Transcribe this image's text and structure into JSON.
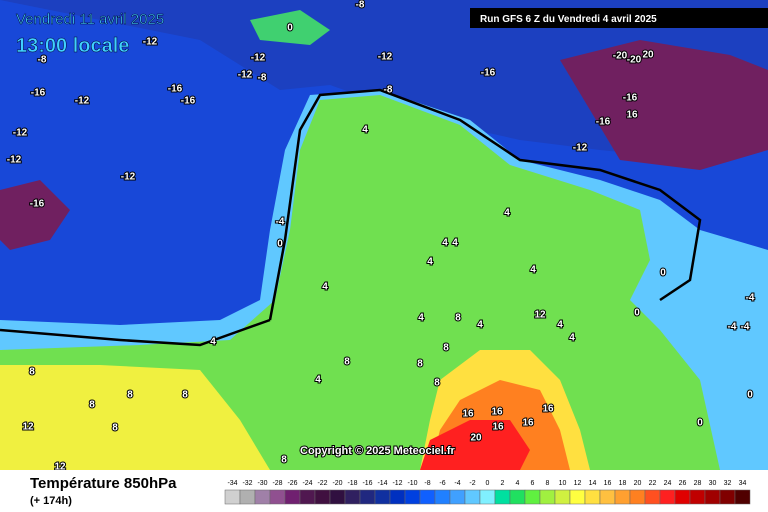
{
  "header": {
    "date": "Vendredi 11 avril 2025",
    "time": "13:00 locale",
    "run": "Run GFS 6 Z du Vendredi 4 avril 2025"
  },
  "copyright": "Copyright © 2025 Meteociel.fr",
  "footer": {
    "title": "Température 850hPa",
    "lead": "(+ 174h)"
  },
  "legend": {
    "ticks": [
      -34,
      -32,
      -30,
      -28,
      -26,
      -24,
      -22,
      -20,
      -18,
      -16,
      -14,
      -12,
      -10,
      -8,
      -6,
      -4,
      -2,
      0,
      2,
      4,
      6,
      8,
      10,
      12,
      14,
      16,
      18,
      20,
      22,
      24,
      26,
      28,
      30,
      32,
      34
    ],
    "colors": [
      "#d0d0d0",
      "#b0b0b0",
      "#a080a8",
      "#905090",
      "#702070",
      "#501850",
      "#401040",
      "#301040",
      "#302060",
      "#202880",
      "#1030a0",
      "#0030c0",
      "#0040e0",
      "#1060ff",
      "#2080ff",
      "#40a0ff",
      "#60c8ff",
      "#80f0ff",
      "#00e0a0",
      "#20e060",
      "#60f040",
      "#a0f040",
      "#d0f040",
      "#ffff40",
      "#ffe040",
      "#ffc040",
      "#ffa030",
      "#ff8020",
      "#ff5020",
      "#ff2020",
      "#e00000",
      "#c00000",
      "#a00000",
      "#800000",
      "#500000"
    ]
  },
  "map": {
    "contour_labels": [
      0,
      -8,
      -12,
      -12,
      -12,
      -12,
      -8,
      -16,
      -20,
      20,
      -20,
      -8,
      -16,
      -12,
      -16,
      -16,
      -12,
      -12,
      -12,
      -16,
      -8,
      -12,
      -16,
      16,
      -16,
      4,
      -4,
      0,
      4,
      4,
      4,
      4,
      4,
      0,
      4,
      -4,
      -4,
      -4,
      0,
      4,
      4,
      8,
      4,
      12,
      4,
      4,
      8,
      8,
      8,
      4,
      8,
      8,
      8,
      8,
      8,
      8,
      12,
      12,
      16,
      16,
      16,
      16,
      16,
      20,
      8,
      0,
      0
    ]
  }
}
